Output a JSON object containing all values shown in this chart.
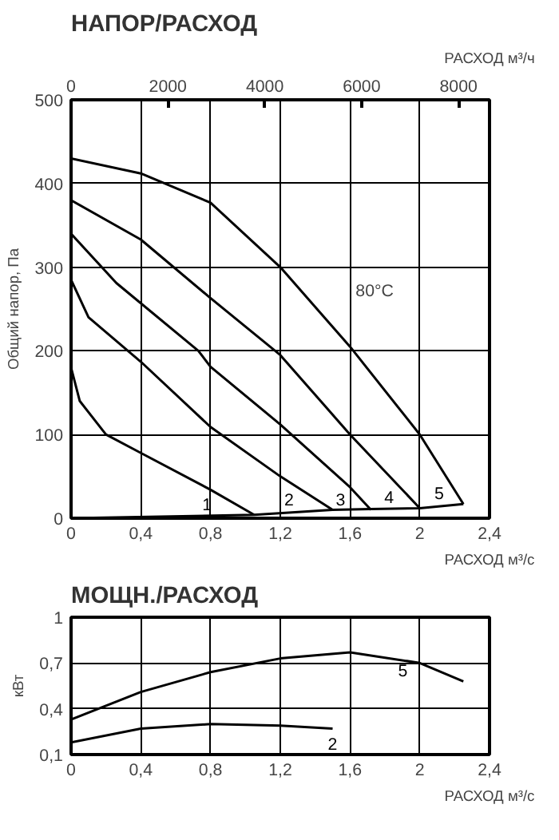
{
  "chart_data": [
    {
      "type": "line",
      "title": "НАПОР/РАСХОД",
      "xlabel": "РАСХОД м³/с",
      "ylabel": "Общий напор, Па",
      "x2label": "РАСХОД м³/ч",
      "xlim": [
        0,
        2.4
      ],
      "xticks": [
        0,
        {
          "value": 0.4,
          "label": "0,4"
        },
        {
          "value": 0.8,
          "label": "0,8"
        },
        {
          "value": 1.2,
          "label": "1,2"
        },
        {
          "value": 1.6,
          "label": "1,6"
        },
        2,
        {
          "value": 2.4,
          "label": "2,4"
        }
      ],
      "x2lim": [
        0,
        8640
      ],
      "x2ticks": [
        0,
        2000,
        4000,
        6000,
        8000
      ],
      "ylim": [
        0,
        500
      ],
      "yticks": [
        0,
        100,
        200,
        300,
        400,
        500
      ],
      "grid": true,
      "marker": "none",
      "line_style": "solid",
      "series": [
        {
          "name": "1",
          "color": "#000000",
          "x": [
            0,
            0.05,
            0.2,
            0.4,
            0.8,
            1.05
          ],
          "values": [
            180,
            140,
            100,
            78,
            34,
            4
          ]
        },
        {
          "name": "2",
          "color": "#000000",
          "x": [
            0,
            0.1,
            0.4,
            0.8,
            1.2,
            1.5
          ],
          "values": [
            285,
            240,
            187,
            109,
            50,
            10
          ]
        },
        {
          "name": "3",
          "color": "#000000",
          "x": [
            0,
            0.26,
            0.73,
            0.8,
            1.2,
            1.6,
            1.72
          ],
          "values": [
            340,
            281,
            200,
            181,
            112,
            37,
            10
          ]
        },
        {
          "name": "4",
          "color": "#000000",
          "x": [
            0,
            0.4,
            0.8,
            1.2,
            1.6,
            2.0
          ],
          "values": [
            380,
            333,
            263,
            195,
            100,
            12
          ]
        },
        {
          "name": "5",
          "color": "#000000",
          "x": [
            0,
            0.4,
            0.8,
            1.2,
            1.6,
            2.0,
            2.25
          ],
          "values": [
            430,
            412,
            377,
            300,
            205,
            100,
            17
          ]
        },
        {
          "color": "#000000",
          "x": [
            0,
            1.05,
            1.5,
            1.72,
            2.0,
            2.25
          ],
          "values": [
            0,
            4,
            10,
            11,
            12,
            17
          ]
        }
      ],
      "annotations": [
        "80°C"
      ]
    },
    {
      "type": "line",
      "title": "МОЩН./РАСХОД",
      "xlabel": "РАСХОД м³/с",
      "ylabel": "кВт",
      "xlim": [
        0,
        2.4
      ],
      "xticks": [
        0,
        {
          "value": 0.4,
          "label": "0,4"
        },
        {
          "value": 0.8,
          "label": "0,8"
        },
        {
          "value": 1.2,
          "label": "1,2"
        },
        {
          "value": 1.6,
          "label": "1,6"
        },
        2,
        {
          "value": 2.4,
          "label": "2,4"
        }
      ],
      "ylim": [
        0.1,
        1
      ],
      "yticks": [
        {
          "value": 0.1,
          "label": "0,1"
        },
        {
          "value": 0.4,
          "label": "0,4"
        },
        {
          "value": 0.7,
          "label": "0,7"
        },
        1
      ],
      "grid": true,
      "marker": "none",
      "line_style": "solid",
      "series": [
        {
          "name": "5",
          "color": "#000000",
          "x": [
            0,
            0.4,
            0.8,
            1.2,
            1.6,
            2.0,
            2.25
          ],
          "values": [
            0.33,
            0.51,
            0.64,
            0.73,
            0.77,
            0.7,
            0.58
          ]
        },
        {
          "name": "2",
          "color": "#000000",
          "x": [
            0,
            0.4,
            0.8,
            1.2,
            1.5
          ],
          "values": [
            0.18,
            0.27,
            0.3,
            0.29,
            0.27
          ]
        }
      ]
    }
  ]
}
